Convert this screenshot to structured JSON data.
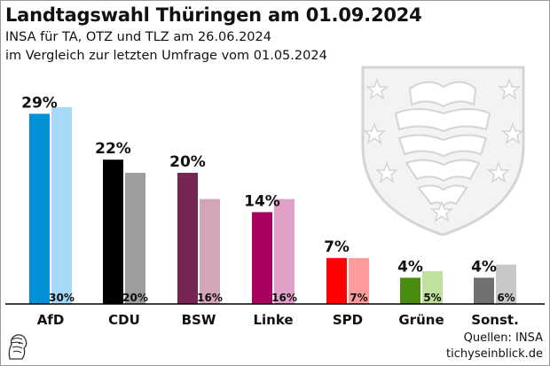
{
  "header": {
    "title": "Landtagswahl Thüringen am 01.09.2024",
    "subtitle_1": "INSA für TA, OTZ und TLZ am 26.06.2024",
    "subtitle_2": "im Vergleich zur letzten Umfrage vom 01.05.2024"
  },
  "footer": {
    "sources": "Quellen: INSA",
    "site": "tichyseinblick.de"
  },
  "emblem": {
    "icon": "thuringia-coat-of-arms-icon"
  },
  "logo": {
    "icon": "tichys-einblick-logo-icon"
  },
  "chart_data": {
    "type": "bar",
    "categories": [
      "AfD",
      "CDU",
      "BSW",
      "Linke",
      "SPD",
      "Grüne",
      "Sonst."
    ],
    "series": [
      {
        "values": [
          29,
          22,
          20,
          14,
          7,
          4,
          4
        ],
        "labels": [
          "29%",
          "22%",
          "20%",
          "14%",
          "7%",
          "4%",
          "4%"
        ],
        "colors": [
          "#0091d6",
          "#000000",
          "#772552",
          "#a8005e",
          "#ff0000",
          "#4a8c10",
          "#707070"
        ]
      },
      {
        "values": [
          30,
          20,
          16,
          16,
          7,
          5,
          6
        ],
        "labels": [
          "30%",
          "20%",
          "16%",
          "16%",
          "7%",
          "5%",
          "6%"
        ],
        "colors": [
          "#a6d9f7",
          "#9e9e9e",
          "#d2a5b9",
          "#e0a0c8",
          "#ff9b9b",
          "#bfe09f",
          "#c8c8c8"
        ]
      }
    ],
    "ylim": [
      0,
      30
    ],
    "grid": false,
    "legend": "none"
  }
}
